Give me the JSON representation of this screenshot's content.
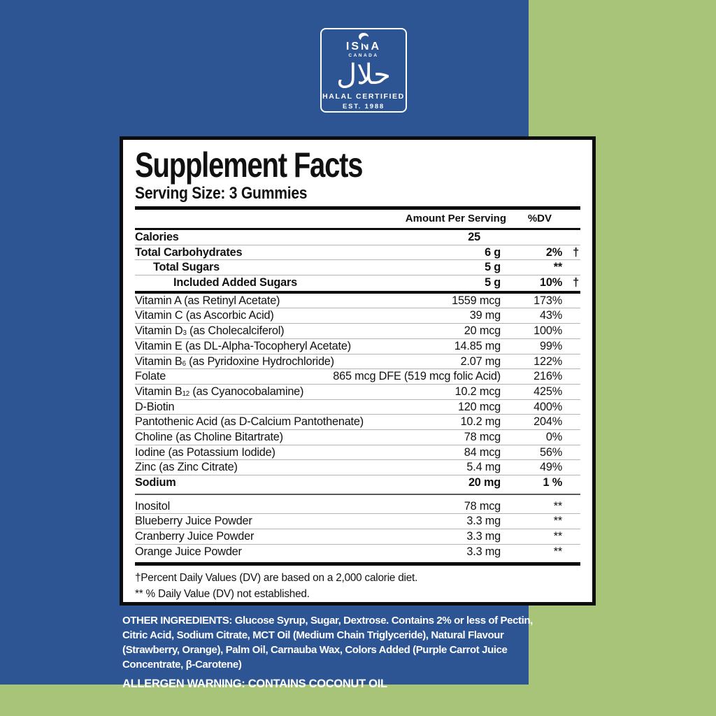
{
  "colors": {
    "background_green": "#a7c478",
    "brand_blue": "#2d5493",
    "panel_border": "#0d0d0d",
    "text_white": "#ffffff"
  },
  "halal_badge": {
    "org": "ISNA",
    "country": "CANADA",
    "arabic": "حلال",
    "certified": "HALAL CERTIFIED",
    "established": "EST. 1988"
  },
  "panel": {
    "title": "Supplement Facts",
    "serving_size": "Serving Size: 3 Gummies",
    "col_amount": "Amount Per Serving",
    "col_dv": "%DV",
    "rows_macros": [
      {
        "indent": 0,
        "bold": true,
        "pre": "Calories",
        "sub": "",
        "post": "",
        "amount": "25",
        "dv": "",
        "dagger": ""
      },
      {
        "indent": 0,
        "bold": true,
        "pre": "Total Carbohydrates",
        "sub": "",
        "post": "",
        "amount": "6 g",
        "dv": "2%",
        "dagger": "†"
      },
      {
        "indent": 1,
        "bold": true,
        "pre": "Total Sugars",
        "sub": "",
        "post": "",
        "amount": "5 g",
        "dv": "**",
        "dagger": ""
      },
      {
        "indent": 2,
        "bold": true,
        "pre": "Included Added Sugars",
        "sub": "",
        "post": "",
        "amount": "5 g",
        "dv": "10%",
        "dagger": "†"
      }
    ],
    "rows_vitamins": [
      {
        "bold": false,
        "pre": "Vitamin A (as Retinyl Acetate)",
        "sub": "",
        "post": "",
        "amount": "1559 mcg",
        "dv": "173%",
        "dagger": ""
      },
      {
        "bold": false,
        "pre": "Vitamin C (as Ascorbic Acid)",
        "sub": "",
        "post": "",
        "amount": "39 mg",
        "dv": "43%",
        "dagger": ""
      },
      {
        "bold": false,
        "pre": "Vitamin D",
        "sub": "3",
        "post": " (as Cholecalciferol)",
        "amount": "20 mcg",
        "dv": "100%",
        "dagger": ""
      },
      {
        "bold": false,
        "pre": "Vitamin E (as DL-Alpha-Tocopheryl Acetate)",
        "sub": "",
        "post": "",
        "amount": "14.85 mg",
        "dv": "99%",
        "dagger": ""
      },
      {
        "bold": false,
        "pre": "Vitamin B",
        "sub": "6",
        "post": " (as Pyridoxine Hydrochloride)",
        "amount": "2.07 mg",
        "dv": "122%",
        "dagger": ""
      },
      {
        "bold": false,
        "pre": "Folate",
        "sub": "",
        "post": "",
        "amount": "865 mcg DFE (519 mcg folic Acid)",
        "dv": "216%",
        "dagger": ""
      },
      {
        "bold": false,
        "pre": "Vitamin B",
        "sub": "12",
        "post": " (as Cyanocobalamine)",
        "amount": "10.2 mcg",
        "dv": "425%",
        "dagger": ""
      },
      {
        "bold": false,
        "pre": "D-Biotin",
        "sub": "",
        "post": "",
        "amount": "120 mcg",
        "dv": "400%",
        "dagger": ""
      },
      {
        "bold": false,
        "pre": "Pantothenic Acid (as D-Calcium Pantothenate)",
        "sub": "",
        "post": "",
        "amount": "10.2 mg",
        "dv": "204%",
        "dagger": ""
      },
      {
        "bold": false,
        "pre": "Choline (as Choline Bitartrate)",
        "sub": "",
        "post": "",
        "amount": "78 mcg",
        "dv": "0%",
        "dagger": ""
      },
      {
        "bold": false,
        "pre": "Iodine (as Potassium Iodide)",
        "sub": "",
        "post": "",
        "amount": "84 mcg",
        "dv": "56%",
        "dagger": ""
      },
      {
        "bold": false,
        "pre": "Zinc (as Zinc Citrate)",
        "sub": "",
        "post": "",
        "amount": "5.4 mg",
        "dv": "49%",
        "dagger": ""
      },
      {
        "bold": true,
        "pre": "Sodium",
        "sub": "",
        "post": "",
        "amount": "20 mg",
        "dv": "1 %",
        "dagger": ""
      }
    ],
    "rows_other": [
      {
        "bold": false,
        "pre": "Inositol",
        "sub": "",
        "post": "",
        "amount": "78 mcg",
        "dv": "**",
        "dagger": ""
      },
      {
        "bold": false,
        "pre": "Blueberry Juice Powder",
        "sub": "",
        "post": "",
        "amount": "3.3 mg",
        "dv": "**",
        "dagger": ""
      },
      {
        "bold": false,
        "pre": "Cranberry Juice Powder",
        "sub": "",
        "post": "",
        "amount": "3.3 mg",
        "dv": "**",
        "dagger": ""
      },
      {
        "bold": false,
        "pre": "Orange Juice Powder",
        "sub": "",
        "post": "",
        "amount": "3.3 mg",
        "dv": "**",
        "dagger": ""
      }
    ],
    "footnotes": [
      "†Percent Daily Values (DV) are based on a 2,000 calorie diet.",
      "** % Daily Value (DV) not established."
    ]
  },
  "bottom": {
    "other_ingredients": "OTHER INGREDIENTS: Glucose Syrup, Sugar, Dextrose. Contains 2% or less of Pectin, Citric Acid, Sodium Citrate, MCT Oil (Medium Chain Triglyceride), Natural Flavour (Strawberry, Orange), Palm Oil, Carnauba Wax, Colors Added (Purple Carrot Juice Concentrate, β-Carotene)",
    "allergen_warning": "ALLERGEN WARNING: CONTAINS COCONUT OIL"
  }
}
